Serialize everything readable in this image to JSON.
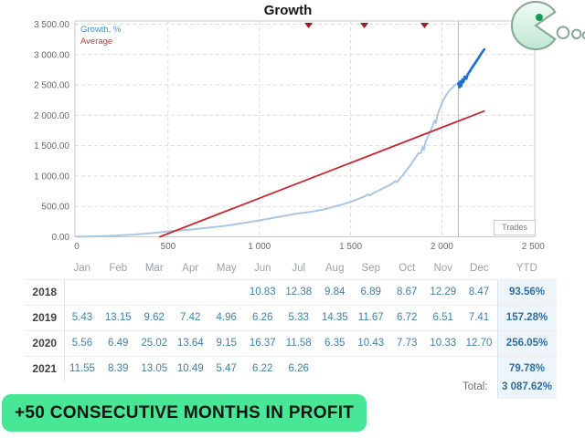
{
  "chart_data": {
    "type": "line",
    "title": "Growth",
    "xlabel": "Trades",
    "legend": [
      "Growth, %",
      "Average"
    ],
    "legend_colors": [
      "#4a90d9",
      "#e03131"
    ],
    "xlim": [
      0,
      2500
    ],
    "ylim": [
      0,
      3500
    ],
    "grid": true,
    "x_ticks": {
      "values": [
        0,
        500,
        1000,
        1500,
        2000,
        2500
      ],
      "labels": [
        "0",
        "500",
        "1 000",
        "1 500",
        "2 000",
        "2 500"
      ]
    },
    "y_ticks": {
      "values": [
        0,
        500,
        1000,
        1500,
        2000,
        2500,
        3000,
        3500
      ],
      "labels": [
        "0.00",
        "500.00",
        "1 000.00",
        "1 500.00",
        "2 000.00",
        "2 500.00",
        "3 000.00",
        "3 500.00"
      ]
    },
    "series": [
      {
        "name": "Growth, % (history)",
        "color": "#a9c6e5",
        "width": 2,
        "points": [
          [
            0,
            2
          ],
          [
            80,
            6
          ],
          [
            160,
            13
          ],
          [
            240,
            24
          ],
          [
            320,
            38
          ],
          [
            400,
            58
          ],
          [
            460,
            75
          ],
          [
            500,
            88
          ],
          [
            560,
            103
          ],
          [
            620,
            118
          ],
          [
            680,
            136
          ],
          [
            740,
            156
          ],
          [
            800,
            178
          ],
          [
            860,
            202
          ],
          [
            920,
            230
          ],
          [
            980,
            258
          ],
          [
            1040,
            292
          ],
          [
            1100,
            325
          ],
          [
            1150,
            352
          ],
          [
            1200,
            378
          ],
          [
            1250,
            398
          ],
          [
            1270,
            405
          ],
          [
            1310,
            425
          ],
          [
            1360,
            455
          ],
          [
            1400,
            490
          ],
          [
            1440,
            520
          ],
          [
            1470,
            545
          ],
          [
            1500,
            575
          ],
          [
            1530,
            610
          ],
          [
            1560,
            645
          ],
          [
            1580,
            672
          ],
          [
            1595,
            700
          ],
          [
            1605,
            680
          ],
          [
            1620,
            710
          ],
          [
            1650,
            755
          ],
          [
            1680,
            800
          ],
          [
            1710,
            845
          ],
          [
            1730,
            880
          ],
          [
            1745,
            920
          ],
          [
            1755,
            900
          ],
          [
            1770,
            960
          ],
          [
            1790,
            1030
          ],
          [
            1810,
            1110
          ],
          [
            1830,
            1190
          ],
          [
            1850,
            1280
          ],
          [
            1870,
            1370
          ],
          [
            1885,
            1380
          ],
          [
            1895,
            1480
          ],
          [
            1902,
            1430
          ],
          [
            1910,
            1560
          ],
          [
            1925,
            1660
          ],
          [
            1940,
            1760
          ],
          [
            1952,
            1850
          ],
          [
            1962,
            1920
          ],
          [
            1968,
            1870
          ],
          [
            1975,
            1990
          ],
          [
            1985,
            2080
          ],
          [
            1995,
            2150
          ],
          [
            2005,
            2230
          ],
          [
            2015,
            2290
          ],
          [
            2025,
            2340
          ],
          [
            2040,
            2400
          ],
          [
            2055,
            2450
          ],
          [
            2070,
            2490
          ],
          [
            2080,
            2510
          ],
          [
            2090,
            2530
          ]
        ]
      },
      {
        "name": "Growth, % (recent)",
        "color": "#1a6fd4",
        "width": 2.6,
        "points": [
          [
            2090,
            2530
          ],
          [
            2096,
            2460
          ],
          [
            2101,
            2560
          ],
          [
            2106,
            2480
          ],
          [
            2112,
            2590
          ],
          [
            2118,
            2545
          ],
          [
            2125,
            2640
          ],
          [
            2134,
            2600
          ],
          [
            2142,
            2680
          ],
          [
            2152,
            2720
          ],
          [
            2162,
            2770
          ],
          [
            2172,
            2815
          ],
          [
            2182,
            2860
          ],
          [
            2192,
            2905
          ],
          [
            2202,
            2950
          ],
          [
            2212,
            3000
          ],
          [
            2222,
            3045
          ],
          [
            2232,
            3085
          ]
        ]
      },
      {
        "name": "Average",
        "color": "#cb2730",
        "width": 1.8,
        "points": [
          [
            455,
            0
          ],
          [
            2232,
            2070
          ]
        ]
      }
    ],
    "event_markers": {
      "shape": "triangle-down",
      "color": "#9c1f1f",
      "x": [
        1270,
        1575,
        1905
      ]
    },
    "current_position_line_x": 2090
  },
  "table": {
    "columns": [
      "Jan",
      "Feb",
      "Mar",
      "Apr",
      "May",
      "Jun",
      "Jul",
      "Aug",
      "Sep",
      "Oct",
      "Nov",
      "Dec",
      "YTD"
    ],
    "rows": [
      {
        "year": "2018",
        "months": [
          "",
          "",
          "",
          "",
          "",
          "10.83",
          "12.38",
          "9.84",
          "6.89",
          "8.67",
          "12.29",
          "8.47"
        ],
        "ytd": "93.56%"
      },
      {
        "year": "2019",
        "months": [
          "5.43",
          "13.15",
          "9.62",
          "7.42",
          "4.96",
          "6.26",
          "5.33",
          "14.35",
          "11.67",
          "6.72",
          "6.51",
          "7.41"
        ],
        "ytd": "157.28%"
      },
      {
        "year": "2020",
        "months": [
          "5.56",
          "6.49",
          "25.02",
          "13.64",
          "9.15",
          "16.37",
          "11.58",
          "6.35",
          "10.43",
          "7.73",
          "10.33",
          "12.70"
        ],
        "ytd": "256.05%"
      },
      {
        "year": "2021",
        "months": [
          "11.55",
          "8.39",
          "13.05",
          "10.49",
          "5.47",
          "6.22",
          "6.26",
          "",
          "",
          "",
          "",
          ""
        ],
        "ytd": "79.78%"
      }
    ],
    "total_label": "Total:",
    "total_value": "3 087.62%"
  },
  "banner": {
    "text": "+50 CONSECUTIVE MONTHS IN PROFIT",
    "background": "#48e795"
  },
  "logo": {
    "name": "pacman",
    "body_color": "#cdeeda",
    "eye_color": "#169a54"
  }
}
